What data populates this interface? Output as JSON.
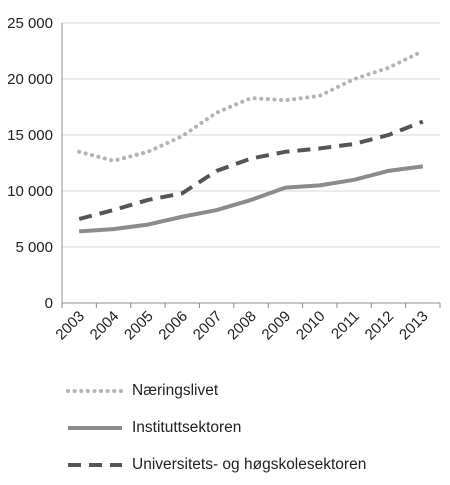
{
  "chart_data": {
    "type": "line",
    "title": "",
    "xlabel": "",
    "ylabel": "",
    "categories": [
      "2003",
      "2004",
      "2005",
      "2006",
      "2007",
      "2008",
      "2009",
      "2010",
      "2011",
      "2012",
      "2013"
    ],
    "y_tick_labels": [
      "0",
      "5 000",
      "10 000",
      "15 000",
      "20 000",
      "25 000"
    ],
    "y_ticks": [
      0,
      5000,
      10000,
      15000,
      20000,
      25000
    ],
    "ylim": [
      0,
      25000
    ],
    "grid": true,
    "legend_position": "bottom",
    "series": [
      {
        "name": "Næringslivet",
        "style": "dotted",
        "color": "#b4b4b4",
        "values": [
          13500,
          12700,
          13500,
          14900,
          17000,
          18300,
          18100,
          18500,
          20000,
          21000,
          22500
        ]
      },
      {
        "name": "Instituttsektoren",
        "style": "solid",
        "color": "#8c8c8c",
        "values": [
          6400,
          6600,
          7000,
          7700,
          8300,
          9200,
          10300,
          10500,
          11000,
          11800,
          12200
        ]
      },
      {
        "name": "Universitets- og høgskolesektoren",
        "style": "dashed",
        "color": "#555555",
        "values": [
          7500,
          8300,
          9200,
          9800,
          11800,
          12900,
          13500,
          13800,
          14200,
          15000,
          16200
        ]
      }
    ]
  }
}
